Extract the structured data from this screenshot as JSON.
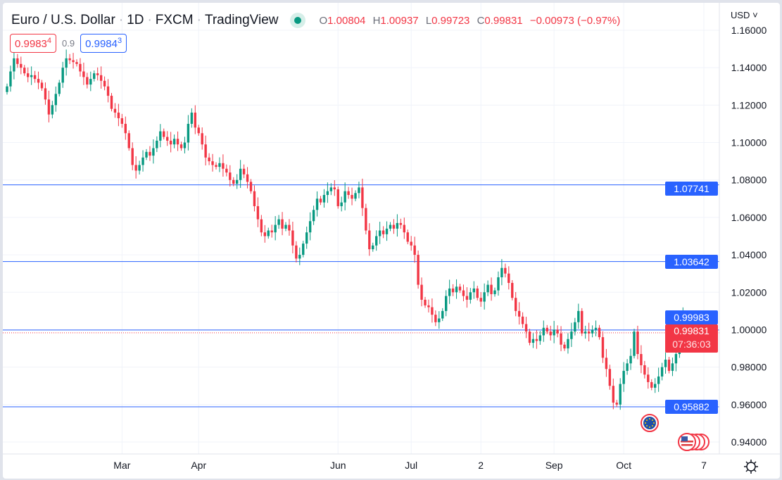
{
  "header": {
    "symbol": "Euro / U.S. Dollar",
    "interval": "1D",
    "source": "FXCM",
    "platform": "TradingView",
    "separator": "·",
    "market_status": "open",
    "open_label": "O",
    "open": "1.00804",
    "high_label": "H",
    "high": "1.00937",
    "low_label": "L",
    "low": "0.99723",
    "close_label": "C",
    "close": "0.99831",
    "change": "−0.00973 (−0.97%)"
  },
  "trade": {
    "sell_main": "0.9983",
    "sell_sup": "4",
    "spread": "0.9",
    "buy_main": "0.9984",
    "buy_sup": "3"
  },
  "currency": "USD",
  "currency_icon": "chevron-down-icon",
  "price_labels": {
    "level_1": "1.07741",
    "level_2": "1.03642",
    "level_3": "0.99983",
    "level_4": "0.95882",
    "last_price": "0.99831",
    "countdown": "07:36:03"
  },
  "colors": {
    "up": "#089981",
    "down": "#f23645",
    "level_line": "#2962ff",
    "grid": "#f0f3fa"
  },
  "event_icons": [
    "eu-flag-icon",
    "us-flag-icon"
  ],
  "chart_data": {
    "type": "candlestick",
    "title": "Euro / U.S. Dollar · 1D · FXCM",
    "ylim": [
      0.93,
      1.165
    ],
    "y_ticks": [
      "1.16000",
      "1.14000",
      "1.12000",
      "1.10000",
      "1.08000",
      "1.06000",
      "1.04000",
      "1.02000",
      "1.00000",
      "0.98000",
      "0.96000",
      "0.94000"
    ],
    "x_ticks": [
      "Mar",
      "Apr",
      "Jun",
      "Jul",
      "2",
      "Sep",
      "Oct",
      "7"
    ],
    "x_tick_candle_index": [
      33,
      55,
      95,
      116,
      136,
      157,
      177,
      200
    ],
    "horizontal_levels": [
      1.07741,
      1.03642,
      0.99983,
      0.95882
    ],
    "last_price": 0.99831,
    "last_candle": {
      "open": 1.00804,
      "high": 1.00937,
      "low": 0.99723,
      "close": 0.99831
    },
    "closes": [
      1.13,
      1.138,
      1.145,
      1.142,
      1.14,
      1.137,
      1.135,
      1.136,
      1.134,
      1.132,
      1.129,
      1.123,
      1.115,
      1.12,
      1.126,
      1.132,
      1.14,
      1.145,
      1.144,
      1.143,
      1.142,
      1.138,
      1.135,
      1.131,
      1.134,
      1.137,
      1.136,
      1.133,
      1.13,
      1.125,
      1.118,
      1.116,
      1.113,
      1.11,
      1.105,
      1.097,
      1.088,
      1.085,
      1.088,
      1.092,
      1.095,
      1.093,
      1.097,
      1.101,
      1.106,
      1.103,
      1.101,
      1.099,
      1.102,
      1.099,
      1.097,
      1.1,
      1.11,
      1.116,
      1.108,
      1.105,
      1.099,
      1.092,
      1.09,
      1.088,
      1.087,
      1.089,
      1.086,
      1.084,
      1.08,
      1.078,
      1.08,
      1.086,
      1.083,
      1.079,
      1.074,
      1.066,
      1.059,
      1.052,
      1.05,
      1.053,
      1.052,
      1.056,
      1.059,
      1.054,
      1.056,
      1.053,
      1.045,
      1.038,
      1.04,
      1.046,
      1.052,
      1.058,
      1.064,
      1.07,
      1.068,
      1.072,
      1.074,
      1.076,
      1.075,
      1.066,
      1.068,
      1.074,
      1.072,
      1.07,
      1.073,
      1.076,
      1.065,
      1.053,
      1.043,
      1.045,
      1.05,
      1.053,
      1.051,
      1.054,
      1.056,
      1.054,
      1.057,
      1.056,
      1.052,
      1.047,
      1.045,
      1.04,
      1.024,
      1.016,
      1.013,
      1.012,
      1.008,
      1.004,
      1.006,
      1.01,
      1.018,
      1.022,
      1.02,
      1.023,
      1.021,
      1.018,
      1.016,
      1.02,
      1.022,
      1.017,
      1.015,
      1.02,
      1.024,
      1.019,
      1.021,
      1.028,
      1.033,
      1.03,
      1.025,
      1.017,
      1.01,
      1.007,
      1.003,
      0.999,
      0.993,
      0.995,
      0.994,
      0.997,
      1.001,
      0.999,
      0.997,
      1.0,
      0.998,
      0.992,
      0.99,
      0.995,
      0.999,
      1.004,
      1.01,
      0.998,
      0.999,
      0.998,
      1.0,
      1.001,
      0.996,
      0.985,
      0.979,
      0.97,
      0.961,
      0.96,
      0.971,
      0.978,
      0.982,
      0.986,
      0.999,
      0.987,
      0.981,
      0.976,
      0.972,
      0.969,
      0.971,
      0.975,
      0.98,
      0.984,
      0.978,
      0.982,
      0.987,
      0.993,
      1.008,
      0.99831
    ]
  }
}
